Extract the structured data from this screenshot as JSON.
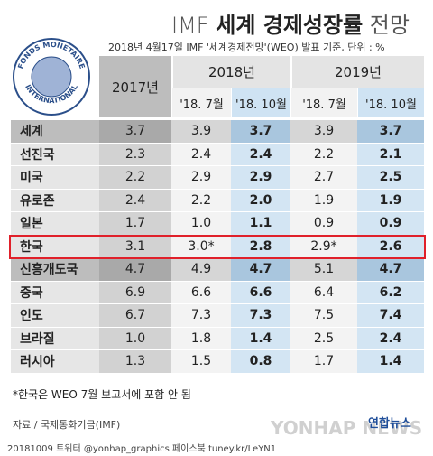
{
  "header": {
    "title_prefix": "IMF",
    "title_bold": "세계 경제성장률",
    "title_suffix": "전망",
    "subtitle": "2018년 4월17일 IMF '세계경제전망'(WEO) 발표 기준, 단위 : %",
    "seal_top": "FONDS MONETAIRE",
    "seal_bottom": "INTERNATIONAL"
  },
  "table": {
    "col_2017": "2017년",
    "year_2018": "2018년",
    "year_2019": "2019년",
    "subcols": [
      "'18. 7월",
      "'18. 10월",
      "'18. 7월",
      "'18. 10월"
    ],
    "rows": [
      {
        "label": "세계",
        "values": [
          "3.7",
          "3.9",
          "3.7",
          "3.9",
          "3.7"
        ]
      },
      {
        "label": "선진국",
        "values": [
          "2.3",
          "2.4",
          "2.4",
          "2.2",
          "2.1"
        ]
      },
      {
        "label": "미국",
        "values": [
          "2.2",
          "2.9",
          "2.9",
          "2.7",
          "2.5"
        ]
      },
      {
        "label": "유로존",
        "values": [
          "2.4",
          "2.2",
          "2.0",
          "1.9",
          "1.9"
        ]
      },
      {
        "label": "일본",
        "values": [
          "1.7",
          "1.0",
          "1.1",
          "0.9",
          "0.9"
        ]
      },
      {
        "label": "한국",
        "values": [
          "3.1",
          "3.0*",
          "2.8",
          "2.9*",
          "2.6"
        ]
      },
      {
        "label": "신흥개도국",
        "values": [
          "4.7",
          "4.9",
          "4.7",
          "5.1",
          "4.7"
        ]
      },
      {
        "label": "중국",
        "values": [
          "6.9",
          "6.6",
          "6.6",
          "6.4",
          "6.2"
        ]
      },
      {
        "label": "인도",
        "values": [
          "6.7",
          "7.3",
          "7.3",
          "7.5",
          "7.4"
        ]
      },
      {
        "label": "브라질",
        "values": [
          "1.0",
          "1.8",
          "1.4",
          "2.5",
          "2.4"
        ]
      },
      {
        "label": "러시아",
        "values": [
          "1.3",
          "1.5",
          "0.8",
          "1.7",
          "1.4"
        ]
      }
    ]
  },
  "footer": {
    "note": "*한국은 WEO 7월 보고서에 포함 안 됨",
    "source": "자료 / 국제통화기금(IMF)",
    "credit": "20181009 트위터 @yonhap_graphics 페이스북 tuney.kr/LeYN1",
    "logo": "연합뉴스",
    "watermark": "YONHAP NEWS"
  }
}
